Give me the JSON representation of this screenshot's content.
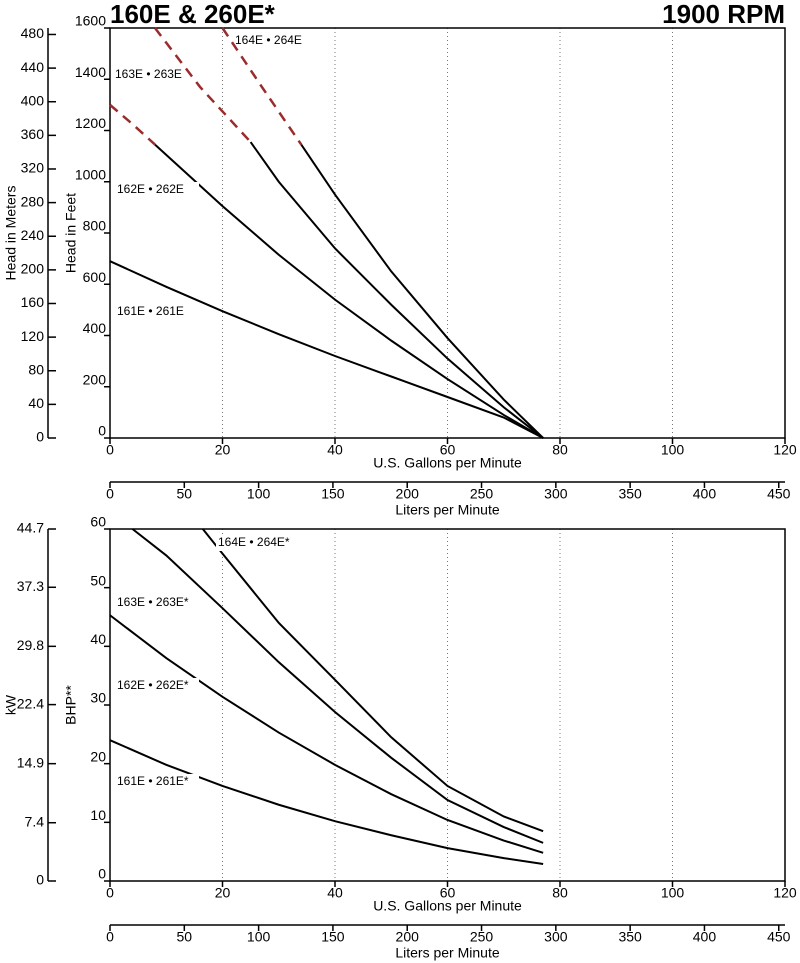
{
  "header": {
    "title": "160E & 260E*",
    "speed": "1900 RPM"
  },
  "chart_data": [
    {
      "type": "line",
      "xlabel": "U.S. Gallons per Minute",
      "ylabel": "Head in Feet",
      "y2label": "Head in Meters",
      "x2label": "Liters per Minute",
      "xlim": [
        0,
        120
      ],
      "xticks": [
        0,
        20,
        40,
        60,
        80,
        100,
        120
      ],
      "ylim": [
        0,
        1600
      ],
      "yticks": [
        0,
        200,
        400,
        600,
        800,
        1000,
        1200,
        1400,
        1600
      ],
      "y2lim": [
        0,
        487.7
      ],
      "y2ticks": [
        0,
        40,
        80,
        120,
        160,
        200,
        240,
        280,
        320,
        360,
        400,
        440,
        480
      ],
      "x2lim": [
        0,
        454.2
      ],
      "x2ticks": [
        0,
        50,
        100,
        150,
        200,
        250,
        300,
        350,
        400,
        450
      ],
      "grid": "x",
      "series": [
        {
          "name": "161E • 261E",
          "color": "#000000",
          "x": [
            0,
            10,
            20,
            30,
            40,
            50,
            60,
            70,
            77
          ],
          "values": [
            690,
            590,
            495,
            405,
            320,
            240,
            160,
            80,
            0
          ]
        },
        {
          "name": "162E • 262E",
          "color": "#000000",
          "x": [
            8,
            10,
            20,
            30,
            40,
            50,
            60,
            70,
            77
          ],
          "values": [
            1145,
            1105,
            905,
            715,
            540,
            380,
            230,
            90,
            0
          ]
        },
        {
          "color": "#9b2c2c",
          "dashed": true,
          "x": [
            0,
            4,
            8
          ],
          "values": [
            1300,
            1225,
            1145
          ]
        },
        {
          "name": "163E • 263E",
          "color": "#000000",
          "x": [
            25,
            30,
            40,
            50,
            60,
            70,
            77
          ],
          "values": [
            1155,
            1000,
            740,
            520,
            310,
            120,
            0
          ]
        },
        {
          "color": "#9b2c2c",
          "dashed": true,
          "x": [
            8,
            16,
            25
          ],
          "values": [
            1600,
            1370,
            1155
          ]
        },
        {
          "name": "164E • 264E",
          "color": "#000000",
          "x": [
            34,
            40,
            50,
            60,
            70,
            77
          ],
          "values": [
            1145,
            950,
            650,
            390,
            150,
            0
          ]
        },
        {
          "color": "#9b2c2c",
          "dashed": true,
          "x": [
            20,
            27,
            34
          ],
          "values": [
            1600,
            1370,
            1145
          ]
        }
      ]
    },
    {
      "type": "line",
      "xlabel": "U.S. Gallons per Minute",
      "ylabel": "BHP**",
      "y2label": "kW",
      "x2label": "Liters per Minute",
      "xlim": [
        0,
        120
      ],
      "xticks": [
        0,
        20,
        40,
        60,
        80,
        100,
        120
      ],
      "ylim": [
        0,
        60
      ],
      "yticks": [
        0,
        10,
        20,
        30,
        40,
        50,
        60
      ],
      "y2lim": [
        0,
        44.7
      ],
      "y2ticks": [
        0,
        7.4,
        14.9,
        22.4,
        29.8,
        37.3,
        44.7
      ],
      "x2lim": [
        0,
        454.2
      ],
      "x2ticks": [
        0,
        50,
        100,
        150,
        200,
        250,
        300,
        350,
        400,
        450
      ],
      "grid": "x",
      "series": [
        {
          "name": "161E • 261E*",
          "color": "#000000",
          "x": [
            0,
            10,
            20,
            30,
            40,
            50,
            60,
            70,
            77
          ],
          "values": [
            24,
            19.8,
            16.2,
            13,
            10.2,
            7.8,
            5.6,
            3.9,
            2.9
          ]
        },
        {
          "name": "162E • 262E*",
          "color": "#000000",
          "x": [
            0,
            10,
            20,
            30,
            40,
            50,
            60,
            70,
            77
          ],
          "values": [
            45.3,
            38,
            31.4,
            25.3,
            19.8,
            14.8,
            10.4,
            6.9,
            4.8
          ]
        },
        {
          "name": "163E • 263E*",
          "color": "#000000",
          "x": [
            4,
            10,
            20,
            30,
            40,
            50,
            60,
            70,
            77
          ],
          "values": [
            60,
            55.5,
            46.5,
            37.3,
            28.8,
            21,
            13.8,
            9.2,
            6.5
          ]
        },
        {
          "name": "164E • 264E*",
          "color": "#000000",
          "x": [
            16.5,
            20,
            30,
            40,
            50,
            60,
            70,
            77
          ],
          "values": [
            60,
            55.8,
            44,
            34.3,
            24.5,
            16.2,
            11,
            8.5
          ]
        }
      ]
    }
  ]
}
